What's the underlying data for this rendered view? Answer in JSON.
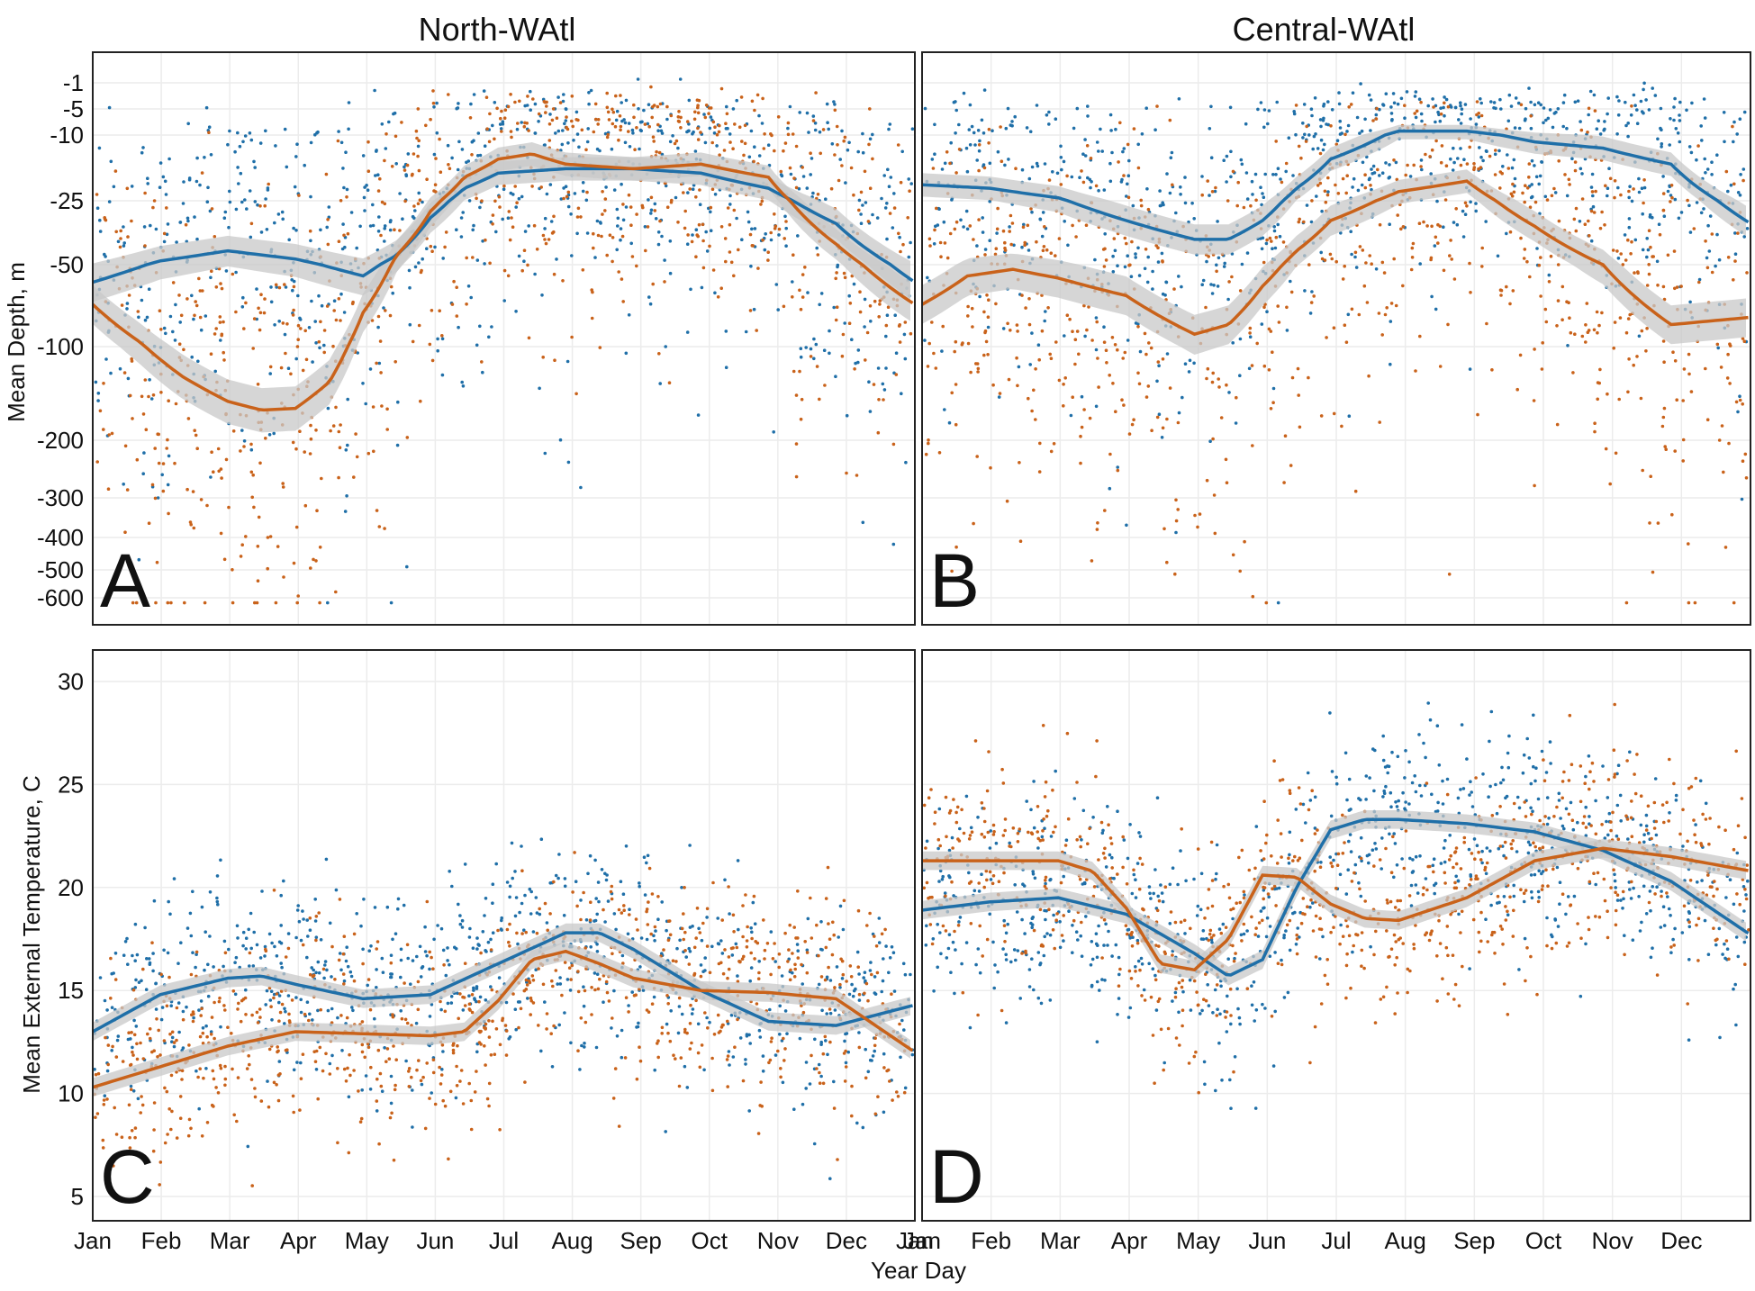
{
  "figure": {
    "column_titles": [
      "North-WAtl",
      "Central-WAtl"
    ],
    "x_axis_title": "Year Day",
    "y_axis_titles": [
      "Mean Depth, m",
      "Mean External Temperature, C"
    ],
    "panel_letters": [
      "A",
      "B",
      "C",
      "D"
    ]
  },
  "colors": {
    "blue": "#1f6fa8",
    "orange": "#c9621a",
    "ribbon": "#c8c8c8"
  },
  "chart_data": [
    {
      "panel": "A",
      "type": "scatter",
      "region": "North-WAtl",
      "variable": "Mean Depth, m",
      "x_ticks": [
        "Jan",
        "Feb",
        "Mar",
        "Apr",
        "May",
        "Jun",
        "Jul",
        "Aug",
        "Sep",
        "Oct",
        "Nov",
        "Dec",
        "Jan"
      ],
      "y_ticks": [
        "-1",
        "-5",
        "-10",
        "-25",
        "-50",
        "-100",
        "-200",
        "-300",
        "-400",
        "-500",
        "-600"
      ],
      "y_scale": "log",
      "x_range_days": [
        0,
        365
      ],
      "smooth_lines": [
        {
          "color": "blue",
          "x": [
            0,
            30,
            60,
            90,
            120,
            135,
            150,
            165,
            180,
            210,
            240,
            270,
            300,
            330,
            365
          ],
          "y": [
            58,
            48,
            43,
            47,
            55,
            45,
            30,
            21,
            17,
            16,
            16,
            17,
            21,
            32,
            58
          ]
        },
        {
          "color": "orange",
          "x": [
            0,
            20,
            40,
            60,
            75,
            90,
            105,
            120,
            135,
            150,
            165,
            180,
            195,
            210,
            240,
            270,
            300,
            330,
            365
          ],
          "y": [
            70,
            95,
            125,
            150,
            160,
            158,
            130,
            75,
            45,
            28,
            18,
            14,
            13,
            15,
            16,
            15,
            18,
            40,
            70
          ]
        }
      ]
    },
    {
      "panel": "B",
      "type": "scatter",
      "region": "Central-WAtl",
      "variable": "Mean Depth, m",
      "x_ticks": [
        "Jan",
        "Feb",
        "Mar",
        "Apr",
        "May",
        "Jun",
        "Jul",
        "Aug",
        "Sep",
        "Oct",
        "Nov",
        "Dec"
      ],
      "y_scale": "log",
      "x_range_days": [
        0,
        365
      ],
      "smooth_lines": [
        {
          "color": "blue",
          "x": [
            0,
            30,
            60,
            90,
            120,
            135,
            150,
            165,
            180,
            210,
            240,
            270,
            300,
            330,
            365
          ],
          "y": [
            20,
            21,
            24,
            31,
            38,
            38,
            31,
            21,
            14,
            9,
            9,
            11,
            12,
            15,
            32
          ]
        },
        {
          "color": "orange",
          "x": [
            0,
            20,
            40,
            60,
            90,
            120,
            135,
            150,
            165,
            180,
            210,
            240,
            270,
            300,
            330,
            365
          ],
          "y": [
            70,
            55,
            52,
            56,
            65,
            90,
            83,
            60,
            43,
            31,
            22,
            19,
            33,
            50,
            83,
            78
          ]
        }
      ]
    },
    {
      "panel": "C",
      "type": "scatter",
      "region": "North-WAtl",
      "variable": "Mean External Temperature, C",
      "x_ticks": [
        "Jan",
        "Feb",
        "Mar",
        "Apr",
        "May",
        "Jun",
        "Jul",
        "Aug",
        "Sep",
        "Oct",
        "Nov",
        "Dec",
        "Jan"
      ],
      "y_ticks": [
        "30",
        "25",
        "20",
        "15",
        "10",
        "5"
      ],
      "y_range": [
        4,
        31
      ],
      "x_range_days": [
        0,
        365
      ],
      "smooth_lines": [
        {
          "color": "blue",
          "x": [
            0,
            30,
            60,
            75,
            90,
            120,
            150,
            180,
            210,
            225,
            240,
            270,
            300,
            330,
            365
          ],
          "y": [
            13.0,
            14.8,
            15.6,
            15.7,
            15.3,
            14.6,
            14.8,
            16.3,
            17.8,
            17.8,
            17.0,
            15.0,
            13.5,
            13.3,
            14.3
          ]
        },
        {
          "color": "orange",
          "x": [
            0,
            30,
            60,
            90,
            120,
            150,
            165,
            180,
            195,
            210,
            225,
            240,
            270,
            300,
            330,
            365
          ],
          "y": [
            10.3,
            11.3,
            12.3,
            13.0,
            12.9,
            12.8,
            13.0,
            14.5,
            16.5,
            16.9,
            16.3,
            15.6,
            15.0,
            14.9,
            14.6,
            12.0
          ]
        }
      ]
    },
    {
      "panel": "D",
      "type": "scatter",
      "region": "Central-WAtl",
      "variable": "Mean External Temperature, C",
      "x_ticks": [
        "Jan",
        "Feb",
        "Mar",
        "Apr",
        "May",
        "Jun",
        "Jul",
        "Aug",
        "Sep",
        "Oct",
        "Nov",
        "Dec"
      ],
      "y_range": [
        4,
        31
      ],
      "x_range_days": [
        0,
        365
      ],
      "smooth_lines": [
        {
          "color": "blue",
          "x": [
            0,
            30,
            60,
            90,
            120,
            135,
            150,
            165,
            180,
            195,
            210,
            240,
            270,
            300,
            330,
            365
          ],
          "y": [
            18.9,
            19.3,
            19.5,
            18.7,
            16.8,
            15.7,
            16.5,
            20.0,
            22.8,
            23.3,
            23.3,
            23.1,
            22.7,
            21.8,
            20.3,
            17.7
          ]
        },
        {
          "color": "orange",
          "x": [
            0,
            30,
            60,
            75,
            90,
            105,
            120,
            135,
            150,
            165,
            180,
            195,
            210,
            240,
            270,
            300,
            330,
            365
          ],
          "y": [
            21.3,
            21.3,
            21.3,
            20.8,
            19.0,
            16.3,
            16.0,
            17.5,
            20.6,
            20.5,
            19.2,
            18.5,
            18.4,
            19.5,
            21.3,
            21.9,
            21.5,
            20.8
          ]
        }
      ]
    }
  ]
}
